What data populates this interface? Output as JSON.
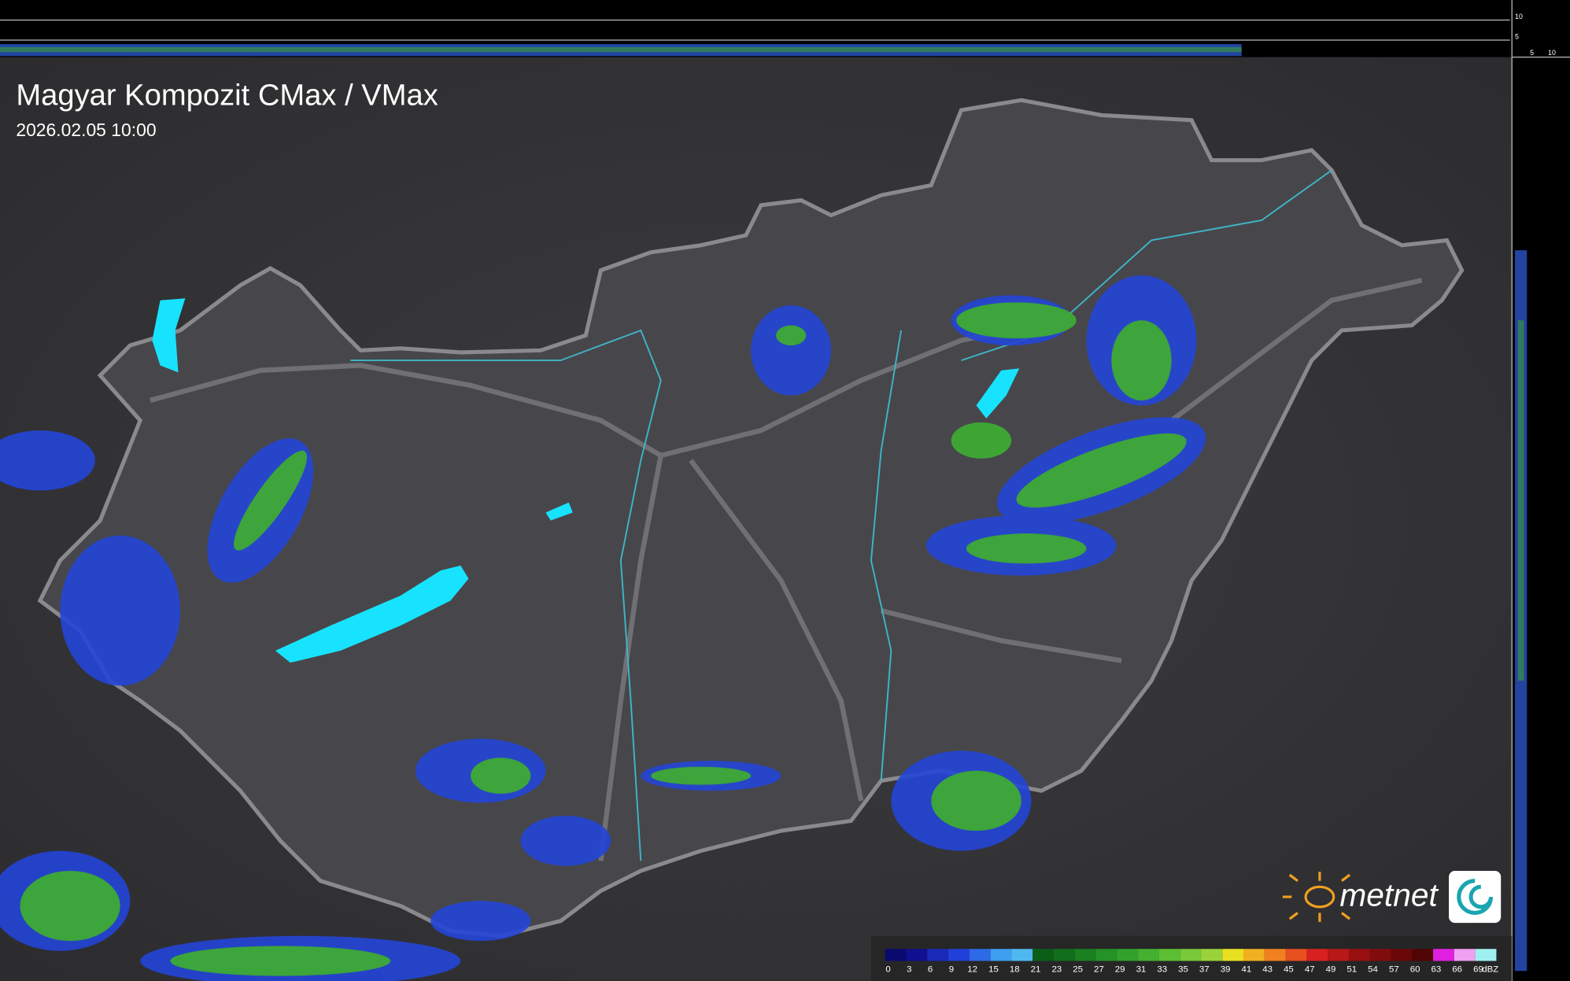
{
  "header": {
    "title": "Magyar Kompozit CMax / VMax",
    "timestamp": "2026.02.05 10:00"
  },
  "legend": {
    "values": [
      0,
      3,
      6,
      9,
      12,
      15,
      18,
      21,
      23,
      25,
      27,
      29,
      31,
      33,
      35,
      37,
      39,
      41,
      43,
      45,
      47,
      49,
      51,
      54,
      57,
      60,
      63,
      66,
      69
    ],
    "unit": "dBZ",
    "colors": [
      "#0a0a6e",
      "#101090",
      "#1a2ab8",
      "#2040d8",
      "#2e6ae6",
      "#3e9ef0",
      "#50b8f0",
      "#0b5e18",
      "#116e1a",
      "#1a8020",
      "#249226",
      "#30a22c",
      "#44b030",
      "#5cbe34",
      "#78c838",
      "#9ad23c",
      "#e8e020",
      "#f0b020",
      "#f08020",
      "#e85020",
      "#d82020",
      "#b81818",
      "#981010",
      "#800c0c",
      "#6a0808",
      "#500404",
      "#e020e0",
      "#f0a0f0",
      "#a0f0f0"
    ]
  },
  "logo": {
    "text": "metnet"
  },
  "profile_scale": {
    "top": [
      10,
      5
    ],
    "bottom": [
      5,
      10
    ]
  }
}
